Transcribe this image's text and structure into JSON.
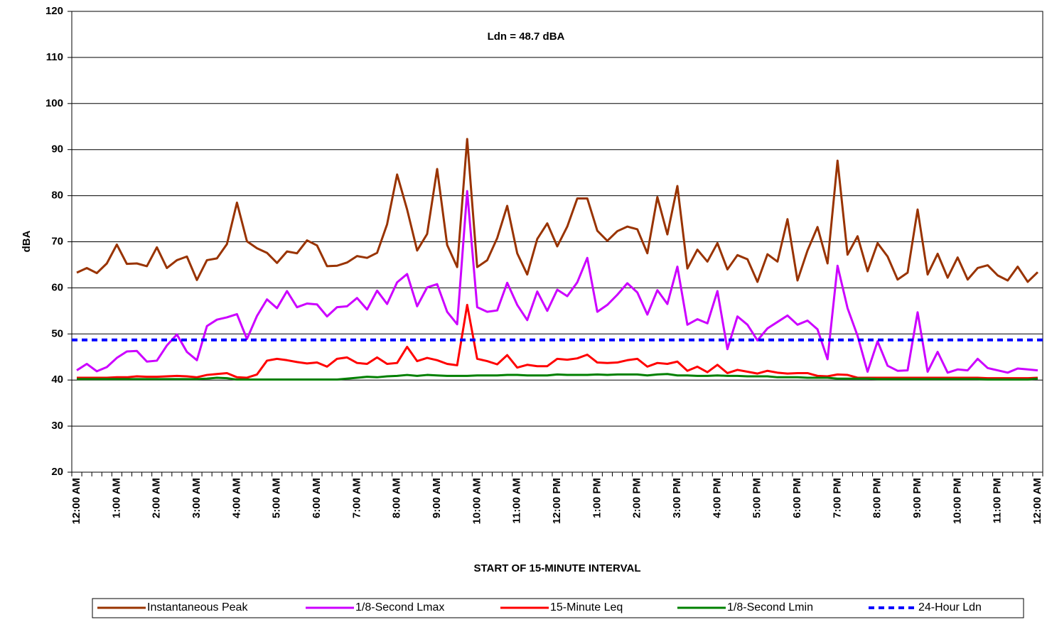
{
  "chart_data": {
    "type": "line",
    "annotation": "Ldn = 48.7 dBA",
    "y_label": "dBA",
    "x_label": "START OF 15-MINUTE INTERVAL",
    "ylim": [
      20,
      120
    ],
    "yticks": [
      20,
      30,
      40,
      50,
      60,
      70,
      80,
      90,
      100,
      110,
      120
    ],
    "grid": true,
    "legend": "bottom",
    "categories": [
      "12:00 AM",
      null,
      null,
      null,
      "1:00 AM",
      null,
      null,
      null,
      "2:00 AM",
      null,
      null,
      null,
      "3:00 AM",
      null,
      null,
      null,
      "4:00 AM",
      null,
      null,
      null,
      "5:00 AM",
      null,
      null,
      null,
      "6:00 AM",
      null,
      null,
      null,
      "7:00 AM",
      null,
      null,
      null,
      "8:00 AM",
      null,
      null,
      null,
      "9:00 AM",
      null,
      null,
      null,
      "10:00 AM",
      null,
      null,
      null,
      "11:00 AM",
      null,
      null,
      null,
      "12:00 PM",
      null,
      null,
      null,
      "1:00 PM",
      null,
      null,
      null,
      "2:00 PM",
      null,
      null,
      null,
      "3:00 PM",
      null,
      null,
      null,
      "4:00 PM",
      null,
      null,
      null,
      "5:00 PM",
      null,
      null,
      null,
      "6:00 PM",
      null,
      null,
      null,
      "7:00 PM",
      null,
      null,
      null,
      "8:00 PM",
      null,
      null,
      null,
      "9:00 PM",
      null,
      null,
      null,
      "10:00 PM",
      null,
      null,
      null,
      "11:00 PM",
      null,
      null,
      null,
      "12:00 AM"
    ],
    "series": [
      {
        "name": "Instantaneous Peak",
        "color": "#993300",
        "values": [
          63.3,
          64.3,
          63.2,
          65.3,
          69.4,
          65.2,
          65.3,
          64.7,
          68.8,
          64.3,
          66.0,
          66.8,
          61.7,
          66.0,
          66.4,
          69.5,
          78.5,
          70.1,
          68.6,
          67.6,
          65.4,
          67.9,
          67.5,
          70.3,
          69.2,
          64.7,
          64.8,
          65.5,
          66.9,
          66.5,
          67.6,
          73.8,
          84.6,
          77.0,
          68.1,
          71.7,
          85.8,
          69.3,
          64.5,
          92.3,
          64.5,
          66.0,
          70.8,
          77.8,
          67.5,
          62.9,
          70.6,
          74.0,
          69.0,
          73.3,
          79.4,
          79.4,
          72.4,
          70.2,
          72.3,
          73.3,
          72.7,
          67.5,
          79.7,
          71.6,
          82.1,
          64.2,
          68.3,
          65.7,
          69.7,
          64.0,
          67.1,
          66.2,
          61.3,
          67.3,
          65.7,
          74.9,
          61.6,
          68.1,
          73.2,
          65.3,
          87.6,
          67.2,
          71.2,
          63.6,
          69.7,
          66.8,
          61.8,
          63.3,
          77.0,
          62.9,
          67.4,
          62.2,
          66.6,
          61.8,
          64.3,
          64.9,
          62.7,
          61.6,
          64.6,
          61.3,
          63.4
        ]
      },
      {
        "name": "1/8-Second Lmax",
        "color": "#cc00ff",
        "values": [
          42.1,
          43.5,
          41.9,
          42.8,
          44.8,
          46.2,
          46.3,
          44.0,
          44.2,
          47.5,
          49.9,
          46.1,
          44.3,
          51.7,
          53.1,
          53.6,
          54.3,
          48.9,
          53.9,
          57.5,
          55.6,
          59.3,
          55.8,
          56.6,
          56.4,
          53.8,
          55.8,
          56.0,
          57.8,
          55.3,
          59.4,
          56.5,
          61.2,
          63.0,
          56.0,
          60.1,
          60.8,
          54.8,
          52.1,
          81.0,
          55.8,
          54.8,
          55.1,
          61.1,
          56.3,
          53.0,
          59.2,
          55.0,
          59.6,
          58.2,
          61.2,
          66.5,
          54.8,
          56.3,
          58.5,
          61.0,
          59.0,
          54.2,
          59.5,
          56.5,
          64.6,
          52.0,
          53.2,
          52.3,
          59.3,
          46.7,
          53.8,
          52.0,
          48.6,
          51.2,
          52.6,
          54.0,
          52.0,
          52.9,
          51.0,
          44.5,
          64.8,
          55.6,
          49.6,
          41.8,
          48.4,
          43.1,
          42.0,
          42.1,
          54.7,
          41.8,
          46.1,
          41.6,
          42.3,
          42.1,
          44.6,
          42.6,
          42.1,
          41.6,
          42.5,
          42.3,
          42.1
        ]
      },
      {
        "name": "15-Minute Leq",
        "color": "#ff0000",
        "values": [
          40.5,
          40.5,
          40.5,
          40.5,
          40.6,
          40.6,
          40.8,
          40.7,
          40.7,
          40.8,
          40.9,
          40.8,
          40.6,
          41.1,
          41.3,
          41.5,
          40.6,
          40.5,
          41.2,
          44.2,
          44.6,
          44.3,
          43.9,
          43.6,
          43.8,
          42.9,
          44.6,
          44.9,
          43.7,
          43.5,
          44.9,
          43.5,
          43.7,
          47.2,
          44.1,
          44.8,
          44.3,
          43.5,
          43.2,
          56.3,
          44.6,
          44.1,
          43.4,
          45.4,
          42.7,
          43.3,
          43.0,
          43.0,
          44.6,
          44.4,
          44.7,
          45.5,
          43.8,
          43.7,
          43.8,
          44.3,
          44.6,
          42.9,
          43.7,
          43.5,
          44.0,
          42.0,
          42.9,
          41.7,
          43.3,
          41.5,
          42.2,
          41.8,
          41.4,
          42.0,
          41.6,
          41.4,
          41.5,
          41.5,
          40.9,
          40.8,
          41.2,
          41.1,
          40.5,
          40.5,
          40.5,
          40.5,
          40.5,
          40.5,
          40.5,
          40.5,
          40.5,
          40.5,
          40.5,
          40.5,
          40.5,
          40.4,
          40.4,
          40.4,
          40.4,
          40.4,
          40.5
        ]
      },
      {
        "name": "1/8-Second Lmin",
        "color": "#008000",
        "values": [
          40.2,
          40.2,
          40.2,
          40.2,
          40.2,
          40.2,
          40.2,
          40.2,
          40.2,
          40.2,
          40.2,
          40.2,
          40.2,
          40.3,
          40.5,
          40.4,
          40.1,
          40.1,
          40.1,
          40.1,
          40.1,
          40.1,
          40.1,
          40.1,
          40.1,
          40.1,
          40.1,
          40.3,
          40.5,
          40.7,
          40.6,
          40.8,
          40.9,
          41.1,
          40.9,
          41.1,
          41.0,
          40.9,
          40.9,
          40.9,
          41.0,
          41.0,
          41.0,
          41.1,
          41.1,
          41.0,
          41.0,
          41.0,
          41.2,
          41.1,
          41.1,
          41.1,
          41.2,
          41.1,
          41.2,
          41.2,
          41.2,
          41.0,
          41.2,
          41.3,
          41.0,
          41.0,
          40.9,
          40.9,
          41.0,
          40.9,
          40.9,
          40.8,
          40.8,
          40.8,
          40.6,
          40.6,
          40.6,
          40.5,
          40.5,
          40.5,
          40.3,
          40.3,
          40.3,
          40.3,
          40.2,
          40.2,
          40.2,
          40.2,
          40.2,
          40.2,
          40.2,
          40.2,
          40.2,
          40.2,
          40.2,
          40.1,
          40.1,
          40.1,
          40.1,
          40.1,
          40.3
        ]
      },
      {
        "name": "24-Hour Ldn",
        "color": "#0000ff",
        "dashed": true,
        "value": 48.7
      }
    ]
  }
}
